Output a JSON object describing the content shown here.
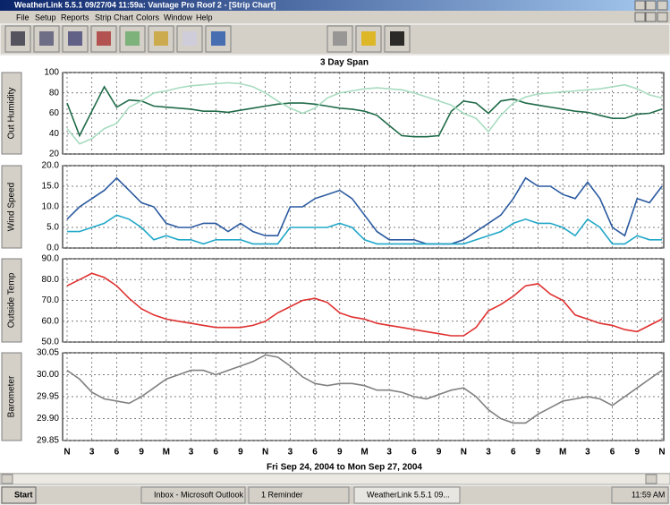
{
  "window": {
    "title": "WeatherLink 5.5.1  09/27/04  11:59a: Vantage Pro Roof 2 - [Strip Chart]",
    "menu": [
      "File",
      "Setup",
      "Reports",
      "Strip Chart",
      "Colors",
      "Window",
      "Help"
    ]
  },
  "chart_data": {
    "type": "line",
    "title": "3 Day Span",
    "xlabel": "Fri Sep 24, 2004  to  Mon Sep 27, 2004",
    "grid": true,
    "categories": [
      "N",
      null,
      "3",
      null,
      "6",
      null,
      "9",
      null,
      "M",
      null,
      "3",
      null,
      "6",
      null,
      "9",
      null,
      "N",
      null,
      "3",
      null,
      "6",
      null,
      "9",
      null,
      "M",
      null,
      "3",
      null,
      "6",
      null,
      "9",
      null,
      "N",
      null,
      "3",
      null,
      "6",
      null,
      "9",
      null,
      "M",
      null,
      "3",
      null,
      "6",
      null,
      "9",
      null,
      "N"
    ],
    "panels": [
      {
        "ylabel": "Out Humidity",
        "ylim": [
          20,
          100
        ],
        "yticks": [
          20,
          40,
          60,
          80,
          100
        ],
        "series": [
          {
            "color": "#1f6b48",
            "values": [
              70,
              38,
              62,
              86,
              66,
              73,
              72,
              67,
              66,
              65,
              64,
              62,
              62,
              61,
              63,
              65,
              67,
              69,
              70,
              70,
              69,
              67,
              65,
              64,
              62,
              58,
              48,
              38,
              37,
              37,
              38,
              62,
              72,
              70,
              60,
              72,
              74,
              70,
              68,
              66,
              64,
              62,
              61,
              58,
              55,
              55,
              59,
              60,
              64
            ]
          },
          {
            "color": "#a8dcc0",
            "values": [
              45,
              30,
              35,
              45,
              50,
              66,
              72,
              80,
              82,
              85,
              87,
              88,
              89,
              90,
              89,
              86,
              80,
              72,
              65,
              60,
              65,
              75,
              80,
              82,
              84,
              85,
              84,
              83,
              80,
              76,
              72,
              68,
              60,
              55,
              42,
              58,
              70,
              76,
              79,
              80,
              81,
              82,
              83,
              84,
              86,
              88,
              84,
              78,
              75
            ]
          }
        ]
      },
      {
        "ylabel": "Wind Speed",
        "ylim": [
          0,
          20
        ],
        "yticks": [
          {
            "value": 0,
            "label": "0.0"
          },
          {
            "value": 5,
            "label": "5.0"
          },
          {
            "value": 10,
            "label": "10.0"
          },
          {
            "value": 15,
            "label": "15.0"
          },
          {
            "value": 20,
            "label": "20.0"
          }
        ],
        "series": [
          {
            "color": "#2a5aa0",
            "values": [
              7,
              10,
              12,
              14,
              17,
              14,
              11,
              10,
              6,
              5,
              5,
              6,
              6,
              4,
              6,
              4,
              3,
              3,
              10,
              10,
              12,
              13,
              14,
              12,
              8,
              4,
              2,
              2,
              2,
              1,
              1,
              1,
              2,
              4,
              6,
              8,
              12,
              17,
              15,
              15,
              13,
              12,
              16,
              12,
              5,
              3,
              12,
              11,
              15
            ]
          },
          {
            "color": "#20a8c8",
            "values": [
              4,
              4,
              5,
              6,
              8,
              7,
              5,
              2,
              3,
              2,
              2,
              1,
              2,
              2,
              2,
              1,
              1,
              1,
              5,
              5,
              5,
              5,
              6,
              5,
              2,
              1,
              1,
              1,
              1,
              1,
              1,
              1,
              1,
              2,
              3,
              4,
              6,
              7,
              6,
              6,
              5,
              3,
              7,
              5,
              1,
              1,
              3,
              2,
              2
            ]
          }
        ]
      },
      {
        "ylabel": "Outside Temp",
        "ylim": [
          50,
          90
        ],
        "yticks": [
          {
            "value": 50,
            "label": "50.0"
          },
          {
            "value": 60,
            "label": "60.0"
          },
          {
            "value": 70,
            "label": "70.0"
          },
          {
            "value": 80,
            "label": "80.0"
          },
          {
            "value": 90,
            "label": "90.0"
          }
        ],
        "series": [
          {
            "color": "#e03030",
            "values": [
              77,
              80,
              83,
              81,
              77,
              71,
              66,
              63,
              61,
              60,
              59,
              58,
              57,
              57,
              57,
              58,
              60,
              64,
              67,
              70,
              71,
              69,
              64,
              62,
              61,
              59,
              58,
              57,
              56,
              55,
              54,
              53,
              53,
              57,
              65,
              68,
              72,
              77,
              78,
              73,
              70,
              63,
              61,
              59,
              58,
              56,
              55,
              58,
              61
            ]
          }
        ]
      },
      {
        "ylabel": "Barometer",
        "ylim": [
          29.85,
          30.05
        ],
        "yticks": [
          29.85,
          {
            "value": 29.9,
            "label": "29.90"
          },
          29.95,
          {
            "value": 30.0,
            "label": "30.00"
          },
          30.05
        ],
        "series": [
          {
            "color": "#808080",
            "values": [
              30.01,
              29.99,
              29.96,
              29.945,
              29.94,
              29.935,
              29.95,
              29.97,
              29.99,
              30.0,
              30.01,
              30.01,
              30.0,
              30.01,
              30.02,
              30.03,
              30.045,
              30.04,
              30.02,
              29.995,
              29.98,
              29.975,
              29.98,
              29.98,
              29.975,
              29.965,
              29.965,
              29.96,
              29.95,
              29.945,
              29.955,
              29.965,
              29.97,
              29.95,
              29.92,
              29.9,
              29.89,
              29.89,
              29.91,
              29.925,
              29.94,
              29.945,
              29.95,
              29.945,
              29.93,
              29.95,
              29.97,
              29.99,
              30.01
            ]
          }
        ]
      }
    ]
  },
  "taskbar": {
    "start": "Start",
    "tasks": [
      "Inbox - Microsoft Outlook",
      "1 Reminder",
      "WeatherLink 5.5.1  09..."
    ],
    "clock": "11:59 AM"
  }
}
